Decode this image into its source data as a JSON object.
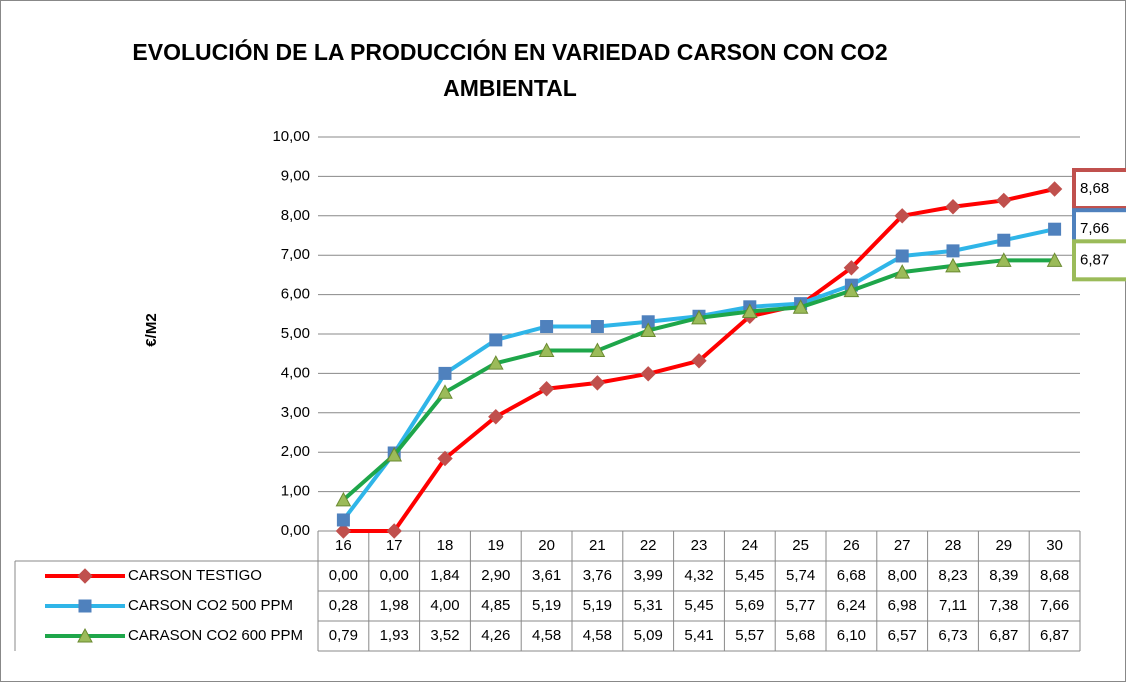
{
  "chart_data": {
    "type": "line",
    "title": "EVOLUCIÓN DE LA PRODUCCIÓN EN VARIEDAD CARSON CON CO2 AMBIENTAL",
    "y_label": "€/M2",
    "categories": [
      "16",
      "17",
      "18",
      "19",
      "20",
      "21",
      "22",
      "23",
      "24",
      "25",
      "26",
      "27",
      "28",
      "29",
      "30"
    ],
    "series": [
      {
        "name": "CARSON TESTIGO",
        "color": "#ff0000",
        "marker": "diamond",
        "marker_color": "#c0504d",
        "values": [
          0.0,
          0.0,
          1.84,
          2.9,
          3.61,
          3.76,
          3.99,
          4.32,
          5.45,
          5.74,
          6.68,
          8.0,
          8.23,
          8.39,
          8.68
        ],
        "value_labels": [
          "0,00",
          "0,00",
          "1,84",
          "2,90",
          "3,61",
          "3,76",
          "3,99",
          "4,32",
          "5,45",
          "5,74",
          "6,68",
          "8,00",
          "8,23",
          "8,39",
          "8,68"
        ]
      },
      {
        "name": "CARSON CO2 500 PPM",
        "color": "#2fb5e8",
        "marker": "square",
        "marker_color": "#4f81bd",
        "values": [
          0.28,
          1.98,
          4.0,
          4.85,
          5.19,
          5.19,
          5.31,
          5.45,
          5.69,
          5.77,
          6.24,
          6.98,
          7.11,
          7.38,
          7.66
        ],
        "value_labels": [
          "0,28",
          "1,98",
          "4,00",
          "4,85",
          "5,19",
          "5,19",
          "5,31",
          "5,45",
          "5,69",
          "5,77",
          "6,24",
          "6,98",
          "7,11",
          "7,38",
          "7,66"
        ]
      },
      {
        "name": "CARASON CO2 600 PPM",
        "color": "#1ea64a",
        "marker": "triangle",
        "marker_color": "#9bbb59",
        "values": [
          0.79,
          1.93,
          3.52,
          4.26,
          4.58,
          4.58,
          5.09,
          5.41,
          5.57,
          5.68,
          6.1,
          6.57,
          6.73,
          6.87,
          6.87
        ],
        "value_labels": [
          "0,79",
          "1,93",
          "3,52",
          "4,26",
          "4,58",
          "4,58",
          "5,09",
          "5,41",
          "5,57",
          "5,68",
          "6,10",
          "6,57",
          "6,73",
          "6,87",
          "6,87"
        ]
      }
    ],
    "ylim": [
      0,
      10
    ],
    "yticks": [
      {
        "value": 0,
        "label": "0,00"
      },
      {
        "value": 1,
        "label": "1,00"
      },
      {
        "value": 2,
        "label": "2,00"
      },
      {
        "value": 3,
        "label": "3,00"
      },
      {
        "value": 4,
        "label": "4,00"
      },
      {
        "value": 5,
        "label": "5,00"
      },
      {
        "value": 6,
        "label": "6,00"
      },
      {
        "value": 7,
        "label": "7,00"
      },
      {
        "value": 8,
        "label": "8,00"
      },
      {
        "value": 9,
        "label": "9,00"
      },
      {
        "value": 10,
        "label": "10,00"
      }
    ],
    "grid": true
  }
}
